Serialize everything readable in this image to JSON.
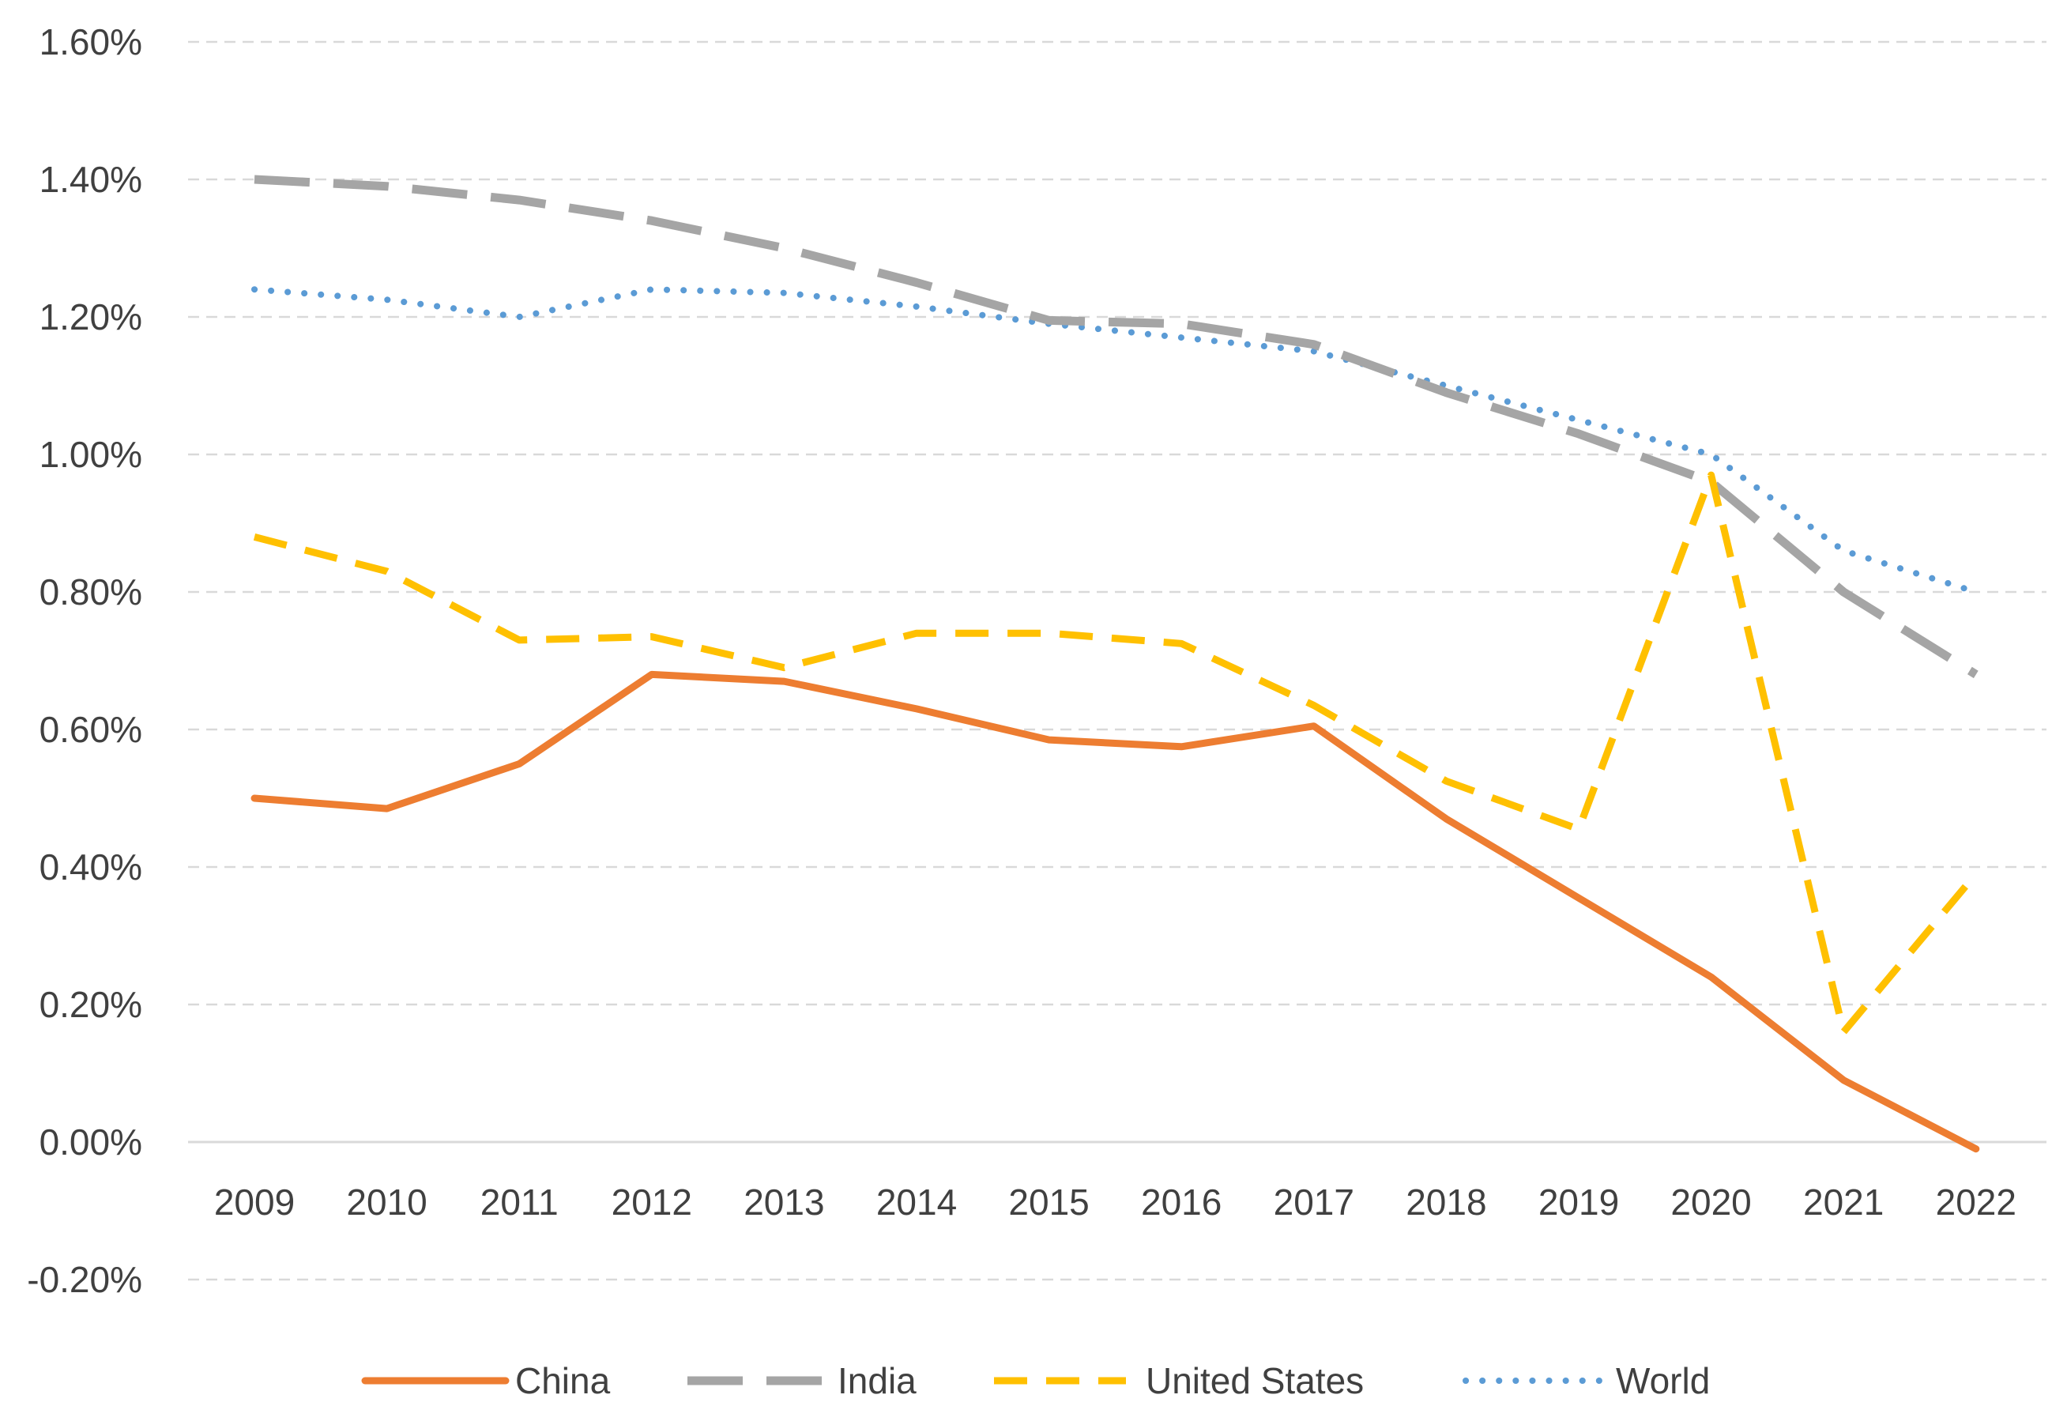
{
  "chart_data": {
    "type": "line",
    "title": "",
    "xlabel": "",
    "ylabel": "",
    "categories": [
      "2009",
      "2010",
      "2011",
      "2012",
      "2013",
      "2014",
      "2015",
      "2016",
      "2017",
      "2018",
      "2019",
      "2020",
      "2021",
      "2022"
    ],
    "ylim": [
      -0.2,
      1.6
    ],
    "yticks": [
      -0.2,
      0.0,
      0.2,
      0.4,
      0.6,
      0.8,
      1.0,
      1.2,
      1.4,
      1.6
    ],
    "ytick_labels": [
      "-0.20%",
      "0.00%",
      "0.20%",
      "0.40%",
      "0.60%",
      "0.80%",
      "1.00%",
      "1.20%",
      "1.40%",
      "1.60%"
    ],
    "grid": true,
    "legend_position": "bottom",
    "series": [
      {
        "name": "China",
        "color": "#ED7D31",
        "style": "solid",
        "values": [
          0.5,
          0.485,
          0.55,
          0.68,
          0.67,
          0.63,
          0.585,
          0.575,
          0.605,
          0.47,
          0.355,
          0.24,
          0.09,
          -0.01
        ]
      },
      {
        "name": "India",
        "color": "#A5A5A5",
        "style": "longdash",
        "values": [
          1.4,
          1.39,
          1.37,
          1.34,
          1.3,
          1.25,
          1.195,
          1.19,
          1.16,
          1.09,
          1.03,
          0.96,
          0.8,
          0.68
        ]
      },
      {
        "name": "United States",
        "color": "#FFC000",
        "style": "dash",
        "values": [
          0.88,
          0.83,
          0.73,
          0.735,
          0.69,
          0.74,
          0.74,
          0.725,
          0.635,
          0.525,
          0.455,
          0.97,
          0.16,
          0.39
        ]
      },
      {
        "name": "World",
        "color": "#5B9BD5",
        "style": "dot",
        "values": [
          1.24,
          1.225,
          1.2,
          1.24,
          1.235,
          1.215,
          1.19,
          1.17,
          1.15,
          1.1,
          1.05,
          1.0,
          0.86,
          0.8
        ]
      }
    ]
  }
}
